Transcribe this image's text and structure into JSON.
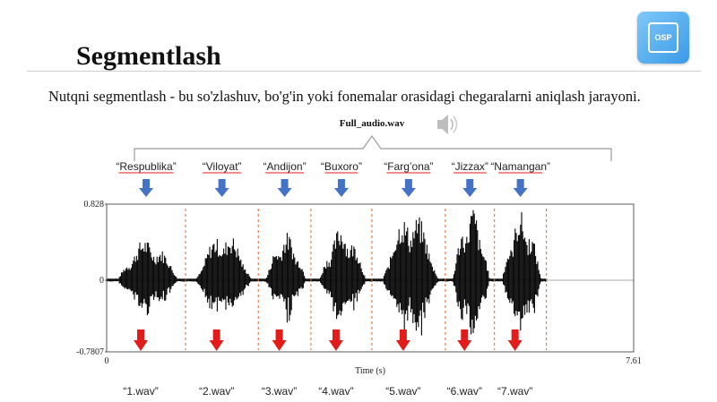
{
  "slide": {
    "title": "Segmentlash",
    "paragraph": "Nutqni segmentlash - bu so'zlashuv, bo'g'in yoki fonemalar orasidagi chegaralarni aniqlash jarayoni.",
    "logo_text": "OSP",
    "logo_icon": "chip-icon",
    "speaker_icon": "speaker-icon"
  },
  "figure": {
    "file_label": "Full_audio.wav",
    "words": [
      "“Respublika”",
      "“Viloyat”",
      "“Andijon”",
      "“Buxoro”",
      "“Farg’ona”",
      "“Jizzax”",
      "“Namangan”"
    ],
    "outputs": [
      "“1.wav”",
      "“2.wav”",
      "“3.wav”",
      "“4.wav”",
      "“5.wav”",
      "“6.wav”",
      "“7.wav”"
    ],
    "colors": {
      "down_arrow": "#4472c4",
      "split_arrow": "#e21b1b",
      "boundary": "#d86b2e",
      "wave": "#000000",
      "underline": "#e21b1b"
    }
  },
  "chart_data": {
    "type": "line",
    "xlabel": "Time (s)",
    "xlim": [
      0,
      7.61
    ],
    "ylim": [
      -0.7807,
      0.828
    ],
    "xticks": [
      "0",
      "7.61"
    ],
    "yticks": [
      "0.828",
      "0",
      "-0.7807"
    ],
    "segment_boundaries_s": [
      0.0,
      1.14,
      2.19,
      2.95,
      3.83,
      4.89,
      5.6,
      6.35,
      7.61
    ]
  }
}
